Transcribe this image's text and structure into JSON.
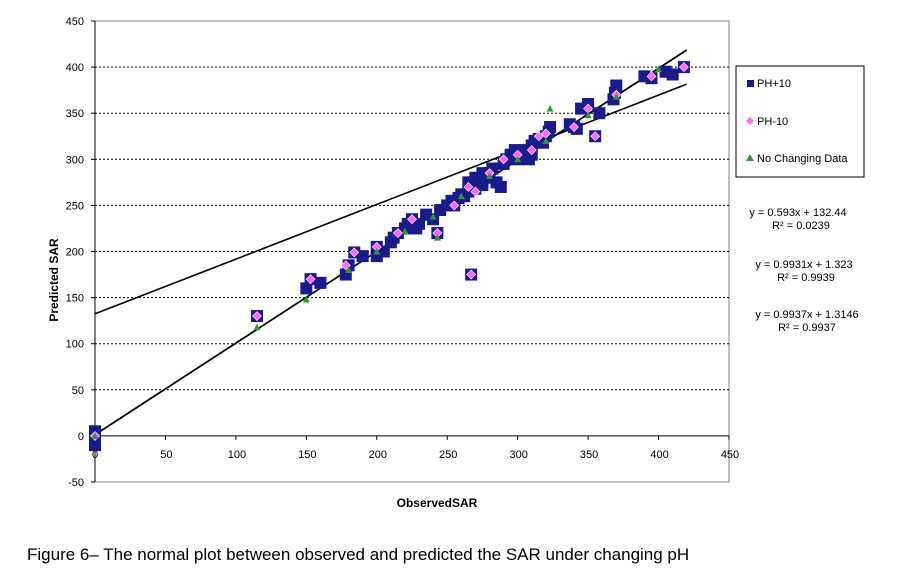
{
  "caption": "Figure 6– The normal plot between observed and predicted the SAR under changing pH",
  "chart_data": {
    "type": "scatter",
    "xlabel": "ObservedSAR",
    "ylabel": "Predicted SAR",
    "xlim": [
      0,
      450
    ],
    "ylim": [
      -50,
      450
    ],
    "x_ticks": [
      0,
      50,
      100,
      150,
      200,
      250,
      300,
      350,
      400,
      450
    ],
    "y_ticks": [
      -50,
      0,
      50,
      100,
      150,
      200,
      250,
      300,
      350,
      400,
      450
    ],
    "grid": "horizontal dashed",
    "legend_position": "right",
    "series": [
      {
        "name": "PH+10",
        "marker": "square",
        "color": "#1a1a8c",
        "points": [
          [
            0,
            0
          ],
          [
            0,
            -5
          ],
          [
            0,
            5
          ],
          [
            0,
            -10
          ],
          [
            115,
            130
          ],
          [
            150,
            160
          ],
          [
            153,
            170
          ],
          [
            160,
            166
          ],
          [
            178,
            175
          ],
          [
            180,
            185
          ],
          [
            184,
            199
          ],
          [
            190,
            195
          ],
          [
            200,
            195
          ],
          [
            200,
            205
          ],
          [
            205,
            200
          ],
          [
            210,
            210
          ],
          [
            212,
            215
          ],
          [
            215,
            220
          ],
          [
            220,
            225
          ],
          [
            222,
            230
          ],
          [
            225,
            235
          ],
          [
            228,
            225
          ],
          [
            230,
            230
          ],
          [
            235,
            240
          ],
          [
            240,
            235
          ],
          [
            243,
            220
          ],
          [
            245,
            245
          ],
          [
            250,
            250
          ],
          [
            253,
            255
          ],
          [
            255,
            250
          ],
          [
            258,
            258
          ],
          [
            260,
            262
          ],
          [
            262,
            260
          ],
          [
            265,
            265
          ],
          [
            265,
            275
          ],
          [
            268,
            270
          ],
          [
            270,
            268
          ],
          [
            270,
            280
          ],
          [
            272,
            275
          ],
          [
            275,
            272
          ],
          [
            275,
            285
          ],
          [
            278,
            280
          ],
          [
            280,
            285
          ],
          [
            282,
            290
          ],
          [
            285,
            275
          ],
          [
            288,
            270
          ],
          [
            290,
            295
          ],
          [
            292,
            300
          ],
          [
            295,
            305
          ],
          [
            298,
            310
          ],
          [
            300,
            300
          ],
          [
            302,
            305
          ],
          [
            305,
            310
          ],
          [
            308,
            300
          ],
          [
            310,
            305
          ],
          [
            310,
            315
          ],
          [
            312,
            320
          ],
          [
            315,
            322
          ],
          [
            318,
            318
          ],
          [
            320,
            325
          ],
          [
            322,
            330
          ],
          [
            323,
            335
          ],
          [
            337,
            338
          ],
          [
            340,
            335
          ],
          [
            342,
            333
          ],
          [
            345,
            355
          ],
          [
            350,
            360
          ],
          [
            355,
            325
          ],
          [
            358,
            350
          ],
          [
            368,
            365
          ],
          [
            369,
            372
          ],
          [
            370,
            380
          ],
          [
            390,
            390
          ],
          [
            395,
            388
          ],
          [
            405,
            395
          ],
          [
            410,
            392
          ],
          [
            418,
            400
          ],
          [
            267,
            175
          ]
        ]
      },
      {
        "name": "PH-10",
        "marker": "diamond",
        "color": "#ff66ff",
        "points": [
          [
            0,
            0
          ],
          [
            115,
            130
          ],
          [
            153,
            170
          ],
          [
            178,
            185
          ],
          [
            184,
            199
          ],
          [
            200,
            205
          ],
          [
            215,
            220
          ],
          [
            225,
            235
          ],
          [
            243,
            220
          ],
          [
            255,
            250
          ],
          [
            265,
            270
          ],
          [
            270,
            265
          ],
          [
            280,
            285
          ],
          [
            290,
            300
          ],
          [
            300,
            305
          ],
          [
            310,
            310
          ],
          [
            315,
            325
          ],
          [
            320,
            328
          ],
          [
            340,
            335
          ],
          [
            350,
            355
          ],
          [
            355,
            325
          ],
          [
            370,
            370
          ],
          [
            395,
            390
          ],
          [
            418,
            400
          ],
          [
            267,
            175
          ]
        ]
      },
      {
        "name": "No Changing Data",
        "marker": "triangle",
        "color": "#339933",
        "points": [
          [
            0,
            0
          ],
          [
            115,
            118
          ],
          [
            150,
            148
          ],
          [
            180,
            180
          ],
          [
            200,
            200
          ],
          [
            220,
            222
          ],
          [
            240,
            238
          ],
          [
            243,
            215
          ],
          [
            260,
            260
          ],
          [
            280,
            282
          ],
          [
            300,
            300
          ],
          [
            320,
            320
          ],
          [
            323,
            355
          ],
          [
            350,
            348
          ],
          [
            370,
            368
          ],
          [
            400,
            398
          ]
        ]
      }
    ],
    "trendlines": [
      {
        "equation": "y = 0.593x + 132.44",
        "r2": "R² = 0.0239",
        "slope": 0.593,
        "intercept": 132.44,
        "x_range": [
          0,
          420
        ]
      },
      {
        "equation": "y = 0.9931x + 1.323",
        "r2": "R² = 0.9939",
        "slope": 0.9931,
        "intercept": 1.323,
        "x_range": [
          0,
          420
        ]
      },
      {
        "equation": "y = 0.9937x + 1.3146",
        "r2": "R² = 0.9937",
        "slope": 0.9937,
        "intercept": 1.3146,
        "x_range": [
          0,
          420
        ]
      }
    ]
  }
}
